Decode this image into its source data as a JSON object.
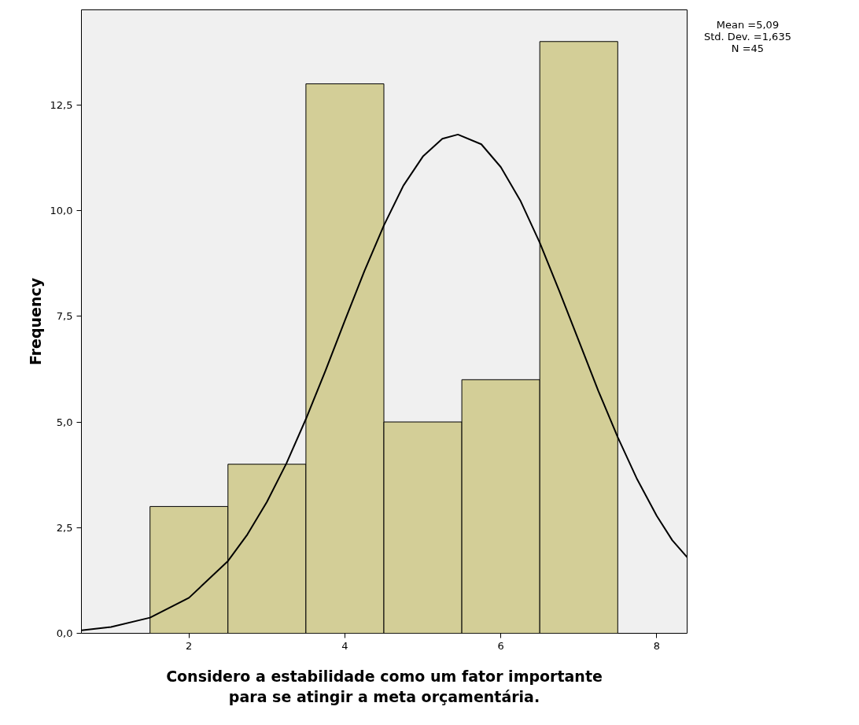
{
  "chart_data": {
    "type": "histogram",
    "xlabel": "Considero a estabilidade como um fator importante\npara se atingir a meta orçamentária.",
    "ylabel": "Frequency",
    "bins": [
      1.5,
      2.5,
      3.5,
      4.5,
      5.5,
      6.5,
      7.5
    ],
    "values": [
      3,
      4,
      13,
      5,
      6,
      14
    ],
    "color": "#d3ce97",
    "series": [
      {
        "type": "line",
        "color": "#000000",
        "x": [
          0.62,
          1,
          1.5,
          2,
          2.5,
          2.75,
          3,
          3.25,
          3.5,
          3.75,
          4,
          4.25,
          4.5,
          4.75,
          5,
          5.25,
          5.45,
          5.75,
          6,
          6.25,
          6.5,
          6.75,
          7,
          7.25,
          7.5,
          7.75,
          8,
          8.2,
          8.39
        ],
        "values": [
          0.07,
          0.15,
          0.37,
          0.84,
          1.71,
          2.34,
          3.11,
          4.02,
          5.07,
          6.21,
          7.4,
          8.57,
          9.65,
          10.59,
          11.28,
          11.7,
          11.8,
          11.57,
          11.03,
          10.24,
          9.24,
          8.1,
          6.92,
          5.74,
          4.64,
          3.64,
          2.78,
          2.2,
          1.8
        ]
      }
    ],
    "xlim": [
      0.62,
      8.39
    ],
    "ylim": [
      0,
      14.75
    ],
    "xticks": [
      2,
      4,
      6,
      8
    ],
    "yticks": [
      {
        "value": 0,
        "label": "0,0"
      },
      {
        "value": 2.5,
        "label": "2,5"
      },
      {
        "value": 5,
        "label": "5,0"
      },
      {
        "value": 7.5,
        "label": "7,5"
      },
      {
        "value": 10,
        "label": "10,0"
      },
      {
        "value": 12.5,
        "label": "12,5"
      }
    ],
    "annotations": [
      "Mean =5,09",
      "Std. Dev. =1,635",
      "N =45"
    ],
    "grid": false
  }
}
